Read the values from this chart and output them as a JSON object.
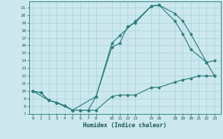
{
  "xlabel": "Humidex (Indice chaleur)",
  "bg_color": "#cce8ee",
  "line_color": "#2e7d7d",
  "grid_color": "#aad4dc",
  "x_ticks": [
    0,
    1,
    2,
    3,
    4,
    5,
    6,
    7,
    8,
    10,
    11,
    12,
    13,
    15,
    16,
    18,
    19,
    20,
    21,
    22,
    23
  ],
  "xlim": [
    -0.5,
    23.8
  ],
  "ylim": [
    7,
    21.8
  ],
  "y_ticks": [
    7,
    8,
    9,
    10,
    11,
    12,
    13,
    14,
    15,
    16,
    17,
    18,
    19,
    20,
    21
  ],
  "curve1_x": [
    0,
    1,
    2,
    3,
    4,
    5,
    6,
    7,
    8,
    10,
    11,
    12,
    13,
    15,
    16,
    18,
    19,
    20,
    21,
    22,
    23
  ],
  "curve1_y": [
    10.0,
    9.8,
    8.8,
    8.5,
    8.1,
    7.5,
    7.5,
    7.5,
    7.5,
    9.3,
    9.5,
    9.5,
    9.5,
    10.5,
    10.5,
    11.2,
    11.5,
    11.7,
    12.0,
    12.0,
    12.0
  ],
  "curve2_x": [
    0,
    1,
    2,
    3,
    4,
    5,
    6,
    7,
    8,
    10,
    11,
    12,
    13,
    15,
    16,
    18,
    19,
    20,
    22,
    23
  ],
  "curve2_y": [
    10.0,
    9.8,
    8.8,
    8.5,
    8.1,
    7.5,
    7.5,
    7.5,
    9.3,
    15.8,
    16.3,
    18.5,
    19.0,
    21.2,
    21.3,
    19.2,
    17.5,
    15.5,
    13.8,
    14.0
  ],
  "curve3_x": [
    0,
    2,
    3,
    5,
    8,
    10,
    11,
    13,
    15,
    16,
    18,
    19,
    20,
    22,
    23
  ],
  "curve3_y": [
    10.0,
    8.8,
    8.5,
    7.5,
    9.3,
    16.3,
    17.3,
    19.2,
    21.2,
    21.3,
    20.2,
    19.2,
    17.5,
    13.8,
    12.0
  ]
}
